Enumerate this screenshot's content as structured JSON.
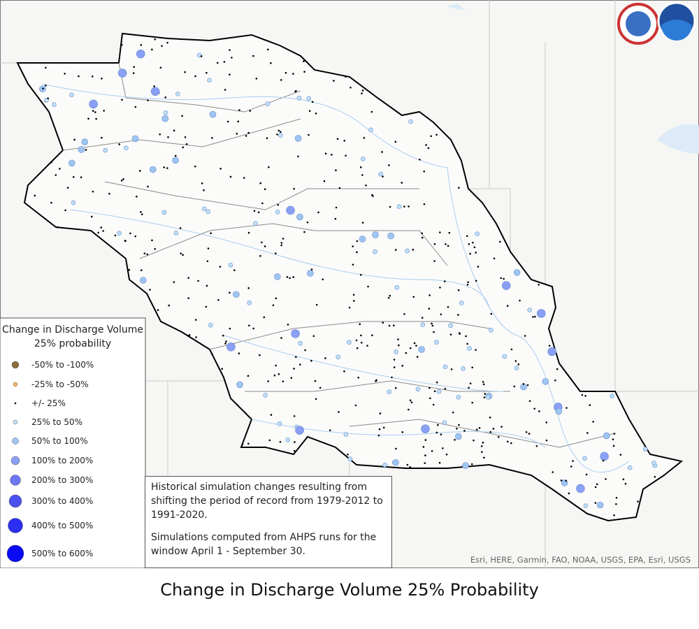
{
  "legend": {
    "title": "Change in Discharge Volume 25% probability",
    "items": [
      {
        "label": "-50% to -100%",
        "color": "#8b6d3a"
      },
      {
        "label": "-25% to -50%",
        "color": "#f4b860"
      },
      {
        "label": "+/- 25%",
        "color": "#000000"
      },
      {
        "label": "25% to 50%",
        "color": "#bfe0f7"
      },
      {
        "label": "50% to 100%",
        "color": "#9ec5f2"
      },
      {
        "label": "100% to 200%",
        "color": "#8a9ff5"
      },
      {
        "label": "200% to 300%",
        "color": "#6b78f3"
      },
      {
        "label": "300% to 400%",
        "color": "#4b50f0"
      },
      {
        "label": "400% to 500%",
        "color": "#2c2ef2"
      },
      {
        "label": "500% to 600%",
        "color": "#0a0af5"
      }
    ]
  },
  "note": [
    "Historical simulation changes resulting from shifting the period of record from 1979-2012 to 1991-2020.",
    "Simulations computed from AHPS runs for the window April 1 - September 30."
  ],
  "attribution": "Esri, HERE, Garmin, FAO, NOAA, USGS, EPA, Esri, USGS",
  "caption": "Change in Discharge Volume 25% Probability"
}
